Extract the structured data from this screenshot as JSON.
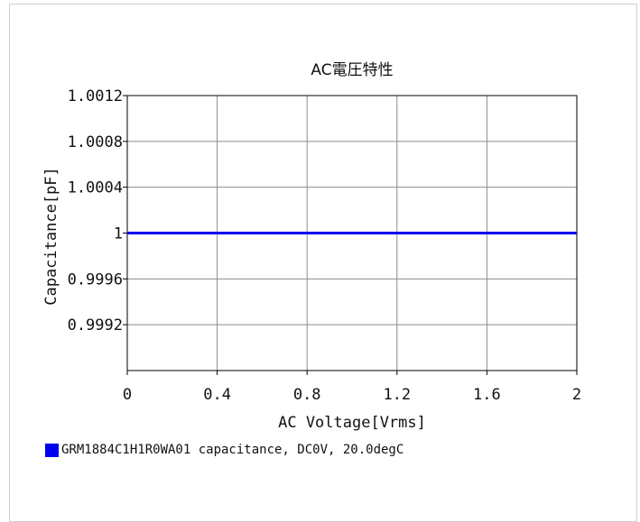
{
  "chart_data": {
    "type": "line",
    "title": "AC電圧特性",
    "xlabel": "AC Voltage[Vrms]",
    "ylabel": "Capacitance[pF]",
    "xlim": [
      0,
      2
    ],
    "ylim": [
      0.9988,
      1.0012
    ],
    "x_ticks": [
      0,
      0.4,
      0.8,
      1.2,
      1.6,
      2
    ],
    "x_tick_labels": [
      "0",
      "0.4",
      "0.8",
      "1.2",
      "1.6",
      "2"
    ],
    "y_ticks": [
      1.0012,
      1.0008,
      1.0004,
      1,
      0.9996,
      0.9992
    ],
    "y_tick_labels": [
      "1.0012",
      "1.0008",
      "1.0004",
      "1",
      "0.9996",
      "0.9992"
    ],
    "grid": true,
    "legend_position": "bottom-left",
    "series": [
      {
        "name": "GRM1884C1H1R0WA01 capacitance, DC0V, 20.0degC",
        "color": "#0000ee",
        "x": [
          0,
          0.4,
          0.8,
          1.2,
          1.6,
          2
        ],
        "y": [
          1,
          1,
          1,
          1,
          1,
          1
        ]
      }
    ]
  }
}
